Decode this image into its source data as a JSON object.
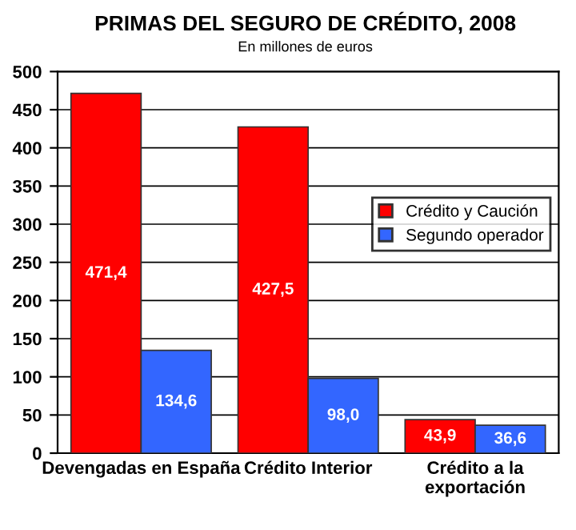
{
  "chart_data": {
    "type": "bar",
    "title": "PRIMAS DEL SEGURO DE CRÉDITO, 2008",
    "subtitle": "En millones de euros",
    "categories": [
      "Devengadas en España",
      "Crédito Interior",
      "Crédito a la exportación"
    ],
    "series": [
      {
        "name": "Crédito y Caución",
        "color": "#ff0000",
        "values": [
          471.4,
          427.5,
          43.9
        ],
        "value_labels": [
          "471,4",
          "427,5",
          "43,9"
        ]
      },
      {
        "name": "Segundo operador",
        "color": "#3366ff",
        "values": [
          134.6,
          98.0,
          36.6
        ],
        "value_labels": [
          "134,6",
          "98,0",
          "36,6"
        ]
      }
    ],
    "ylim": [
      0,
      500
    ],
    "yticks": [
      0,
      50,
      100,
      150,
      200,
      250,
      300,
      350,
      400,
      450,
      500
    ],
    "grid": "y",
    "legend": "right"
  }
}
